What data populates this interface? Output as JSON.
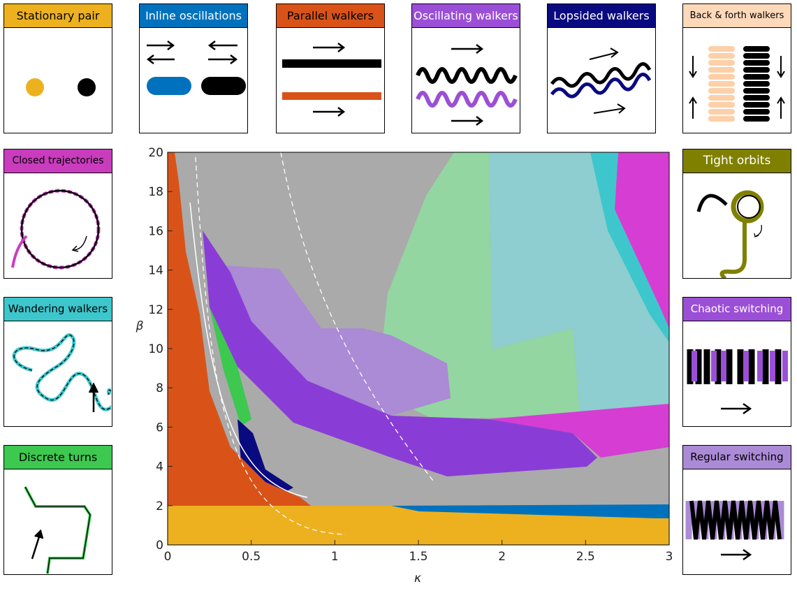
{
  "chart_data": {
    "type": "phase",
    "xlabel": "κ",
    "ylabel": "β",
    "xlim": [
      0,
      3
    ],
    "xticks": [
      0,
      0.5,
      1,
      1.5,
      2,
      2.5,
      3
    ],
    "ylim": [
      0,
      20
    ],
    "yticks": [
      0,
      2,
      4,
      6,
      8,
      10,
      12,
      14,
      16,
      18,
      20
    ]
  },
  "panels": [
    {
      "title": "Stationary pair"
    },
    {
      "title": "Inline oscillations"
    },
    {
      "title": "Parallel walkers"
    },
    {
      "title": "Oscillating walkers"
    },
    {
      "title": "Lopsided walkers"
    },
    {
      "title": "Back & forth walkers"
    },
    {
      "title": "Closed trajectories"
    },
    {
      "title": "Wandering walkers"
    },
    {
      "title": "Discrete turns"
    },
    {
      "title": "Tight orbits"
    },
    {
      "title": "Chaotic switching"
    },
    {
      "title": "Regular switching"
    }
  ]
}
